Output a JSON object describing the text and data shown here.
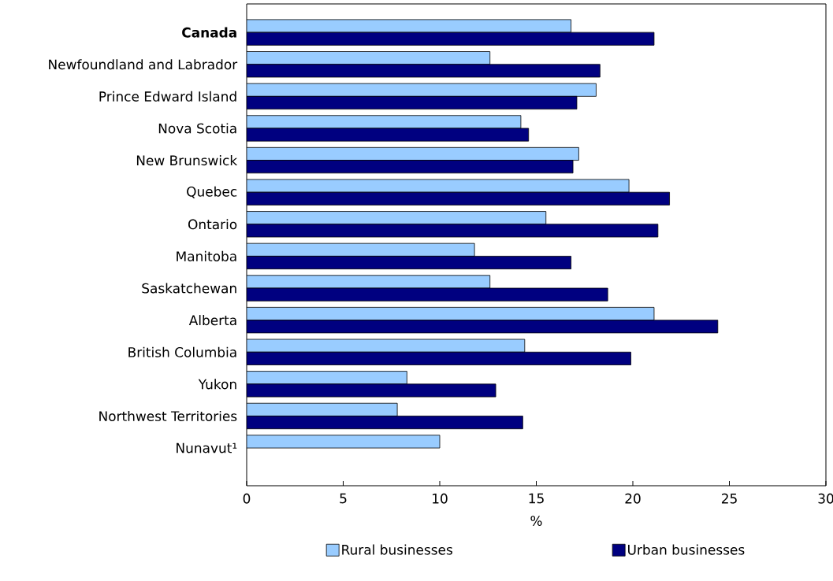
{
  "chart_data": {
    "type": "bar",
    "orientation": "horizontal",
    "xlabel": "%",
    "categories": [
      "**Canada**",
      "Newfoundland and Labrador",
      "Prince Edward Island",
      "Nova Scotia",
      "New Brunswick",
      "Quebec",
      "Ontario",
      "Manitoba",
      "Saskatchewan",
      "Alberta",
      "British Columbia",
      "Yukon",
      "Northwest Territories",
      "Nunavut¹"
    ],
    "series": [
      {
        "name": "Rural businesses",
        "color": "#99ccff",
        "values": [
          16.8,
          12.6,
          18.1,
          14.2,
          17.2,
          19.8,
          15.5,
          11.8,
          12.6,
          21.1,
          14.4,
          8.3,
          7.8,
          10.0
        ]
      },
      {
        "name": "Urban businesses",
        "color": "#000080",
        "values": [
          21.1,
          18.3,
          17.1,
          14.6,
          16.9,
          21.9,
          21.3,
          16.8,
          18.7,
          24.4,
          19.9,
          12.9,
          14.3,
          null
        ]
      }
    ],
    "xlim": [
      0,
      30
    ],
    "xticks": [
      0,
      5,
      10,
      15,
      20,
      25,
      30
    ],
    "legend": "bottom"
  }
}
